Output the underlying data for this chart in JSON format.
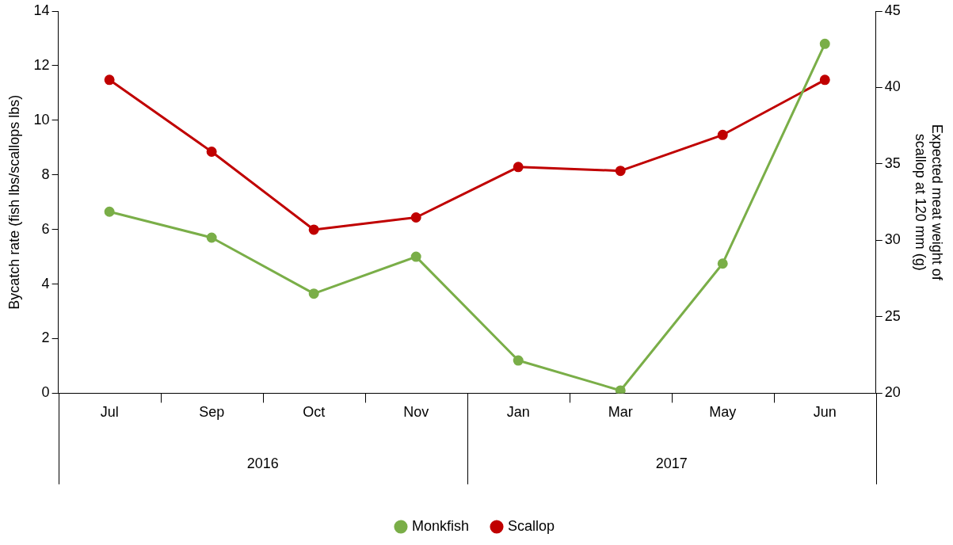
{
  "chart_data": {
    "type": "line",
    "categories": [
      "Jul",
      "Sep",
      "Oct",
      "Nov",
      "Jan",
      "Mar",
      "May",
      "Jun"
    ],
    "annotations": [
      "2016",
      "2017"
    ],
    "ylabel": "Bycatch rate (fish lbs/scallops lbs)",
    "y2label": "Expected meat weight of scallop at 120 mm (g)",
    "ylim": [
      0,
      14
    ],
    "yticks": [
      0,
      2,
      4,
      6,
      8,
      10,
      12,
      14
    ],
    "y2lim": [
      20,
      45
    ],
    "y2ticks": [
      20,
      25,
      30,
      35,
      40,
      45
    ],
    "series": [
      {
        "name": "Monkfish",
        "color": "#7aae48",
        "values": [
          6.65,
          5.7,
          3.65,
          5.0,
          1.2,
          0.1,
          4.75,
          12.8
        ]
      },
      {
        "name": "Scallop",
        "color": "#c00000",
        "axis": "y2",
        "values": [
          40.5,
          35.8,
          30.7,
          31.5,
          34.8,
          34.55,
          36.9,
          40.5
        ]
      }
    ],
    "legend": "bottom",
    "marker": "circle",
    "line_style": "solid",
    "grid": false
  }
}
